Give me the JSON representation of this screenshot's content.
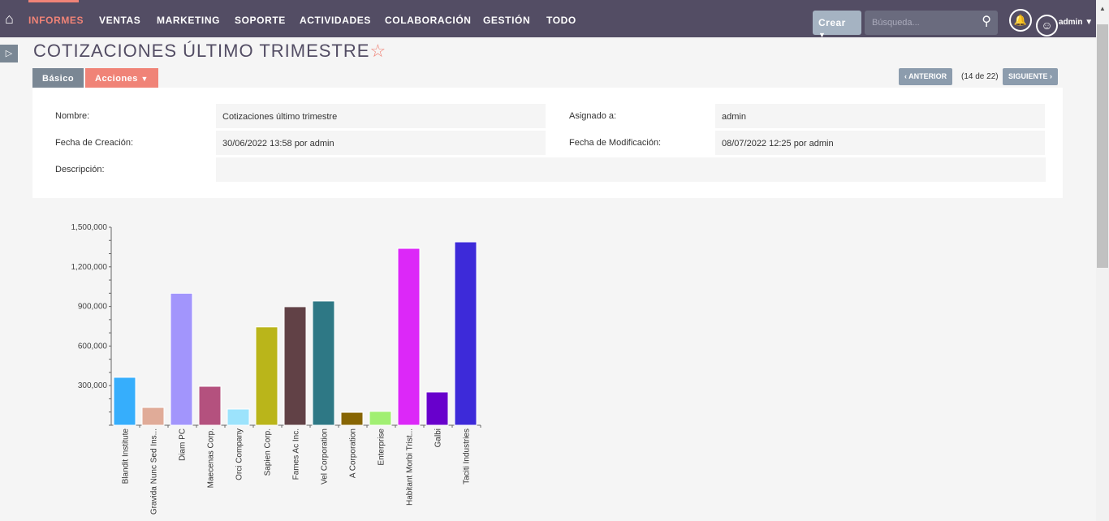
{
  "nav": {
    "items": [
      "INFORMES",
      "VENTAS",
      "MARKETING",
      "SOPORTE",
      "ACTIVIDADES",
      "COLABORACIÓN",
      "GESTIÓN",
      "TODO"
    ],
    "active": "INFORMES",
    "create_label": "Crear",
    "search_placeholder": "Búsqueda...",
    "user": "admin"
  },
  "page": {
    "title": "COTIZACIONES ÚLTIMO TRIMESTRE",
    "tabs": {
      "basic": "Básico",
      "actions": "Acciones"
    },
    "prev": "ANTERIOR",
    "next": "SIGUIENTE",
    "position": "(14 de 22)"
  },
  "detail": {
    "name_label": "Nombre:",
    "name_value": "Cotizaciones último trimestre",
    "assigned_label": "Asignado a:",
    "assigned_value": "admin",
    "created_label": "Fecha de Creación:",
    "created_value": "30/06/2022 13:58 por admin",
    "modified_label": "Fecha de Modificación:",
    "modified_value": "08/07/2022 12:25 por admin",
    "description_label": "Descripción:",
    "description_value": ""
  },
  "colors": {
    "nav": "#534d64",
    "accent": "#f08377"
  },
  "chart_data": {
    "type": "bar",
    "ylim": [
      0,
      1500000
    ],
    "yticks": [
      "1,500,000",
      "1,200,000",
      "900,000",
      "600,000",
      "300,000"
    ],
    "ytick_values": [
      1500000,
      1200000,
      900000,
      600000,
      300000
    ],
    "categories": [
      "Blandit Institute",
      "Gravida Nunc Sed Ins...",
      "Diam PC",
      "Maecenas Corp.",
      "Orci Company",
      "Sapien Corp.",
      "Fames Ac Inc.",
      "Vel Corporation",
      "A Corporation",
      "Enterprise",
      "Habitant Morbi Trist...",
      "Galbi",
      "Taciti Industries"
    ],
    "values": [
      363000,
      135000,
      1000000,
      295000,
      123000,
      745000,
      898000,
      941000,
      98000,
      105000,
      1340000,
      252000,
      1389000
    ],
    "colors": [
      "#36aefc",
      "#e0ab98",
      "#a295fc",
      "#b4517e",
      "#9ce3fc",
      "#bab51a",
      "#614146",
      "#2e7885",
      "#876503",
      "#a1ef72",
      "#dc28f8",
      "#6800cc",
      "#3d2ad9"
    ]
  }
}
